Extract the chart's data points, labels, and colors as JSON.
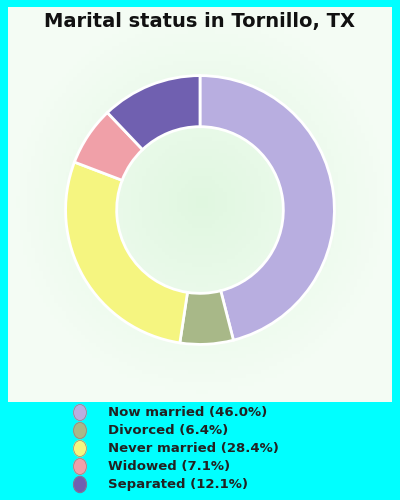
{
  "title": "Marital status in Tornillo, TX",
  "categories": [
    "Now married",
    "Divorced",
    "Never married",
    "Widowed",
    "Separated"
  ],
  "values": [
    46.0,
    6.4,
    28.4,
    7.1,
    12.1
  ],
  "colors": [
    "#b8aee0",
    "#a8b888",
    "#f5f580",
    "#f0a0a8",
    "#7060b0"
  ],
  "legend_labels": [
    "Now married (46.0%)",
    "Divorced (6.4%)",
    "Never married (28.4%)",
    "Widowed (7.1%)",
    "Separated (12.1%)"
  ],
  "legend_colors": [
    "#b8aee0",
    "#a8b888",
    "#f5f580",
    "#f0a0a8",
    "#7060b0"
  ],
  "bg_chart": "#ceecd0",
  "bg_outer": "#00ffff",
  "title_fontsize": 14,
  "donut_width": 0.38
}
